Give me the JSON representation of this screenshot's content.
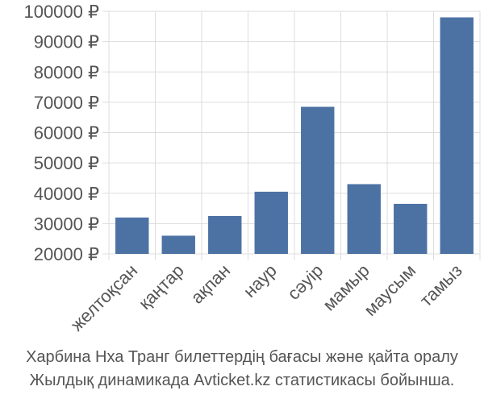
{
  "chart_data": {
    "type": "bar",
    "categories": [
      "желтоқсан",
      "қаңтар",
      "ақпан",
      "наур",
      "сәуір",
      "мамыр",
      "маусым",
      "тамыз"
    ],
    "values": [
      32000,
      26000,
      32500,
      40500,
      68500,
      43000,
      36500,
      98000
    ],
    "yticks": [
      20000,
      30000,
      40000,
      50000,
      60000,
      70000,
      80000,
      90000,
      100000
    ],
    "ytick_labels": [
      "20000 ₽",
      "30000 ₽",
      "40000 ₽",
      "50000 ₽",
      "60000 ₽",
      "70000 ₽",
      "80000 ₽",
      "90000 ₽",
      "100000 ₽"
    ],
    "ylim": [
      20000,
      100000
    ],
    "grid": true,
    "bar_color": "#4c72a4",
    "grid_color": "#dddddd",
    "axis_color": "#555555"
  },
  "caption": {
    "line1": "Харбина Нха Транг билеттердің бағасы және қайта оралу",
    "line2": "Жылдық динамикада Avticket.kz статистикасы бойынша."
  }
}
